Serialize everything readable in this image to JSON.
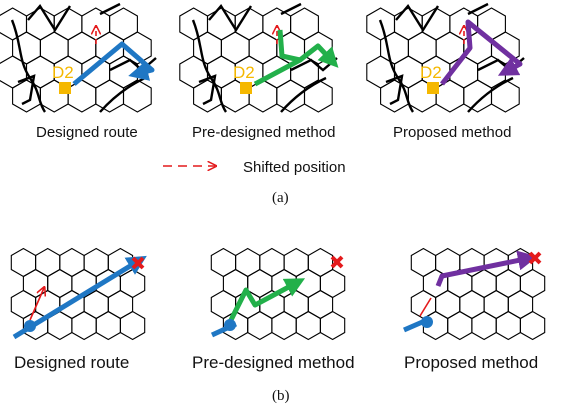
{
  "panel_a": {
    "label": "(a)",
    "node_label": "D2",
    "captions": [
      "Designed route",
      "Pre-designed method",
      "Proposed method"
    ],
    "legend_text": "Shifted position"
  },
  "panel_b": {
    "label": "(b)",
    "captions": [
      "Designed route",
      "Pre-designed method",
      "Proposed method"
    ]
  },
  "colors": {
    "designed_route": "#1f77c4",
    "pre_designed": "#22b04a",
    "proposed": "#7030a0",
    "shift": "#e41a1c",
    "node": "#f5b800",
    "target_x": "#e41a1c",
    "grid": "#000000"
  },
  "icons": [
    "target-x-icon",
    "shift-arrow-icon",
    "start-dot-icon",
    "node-square-icon"
  ]
}
